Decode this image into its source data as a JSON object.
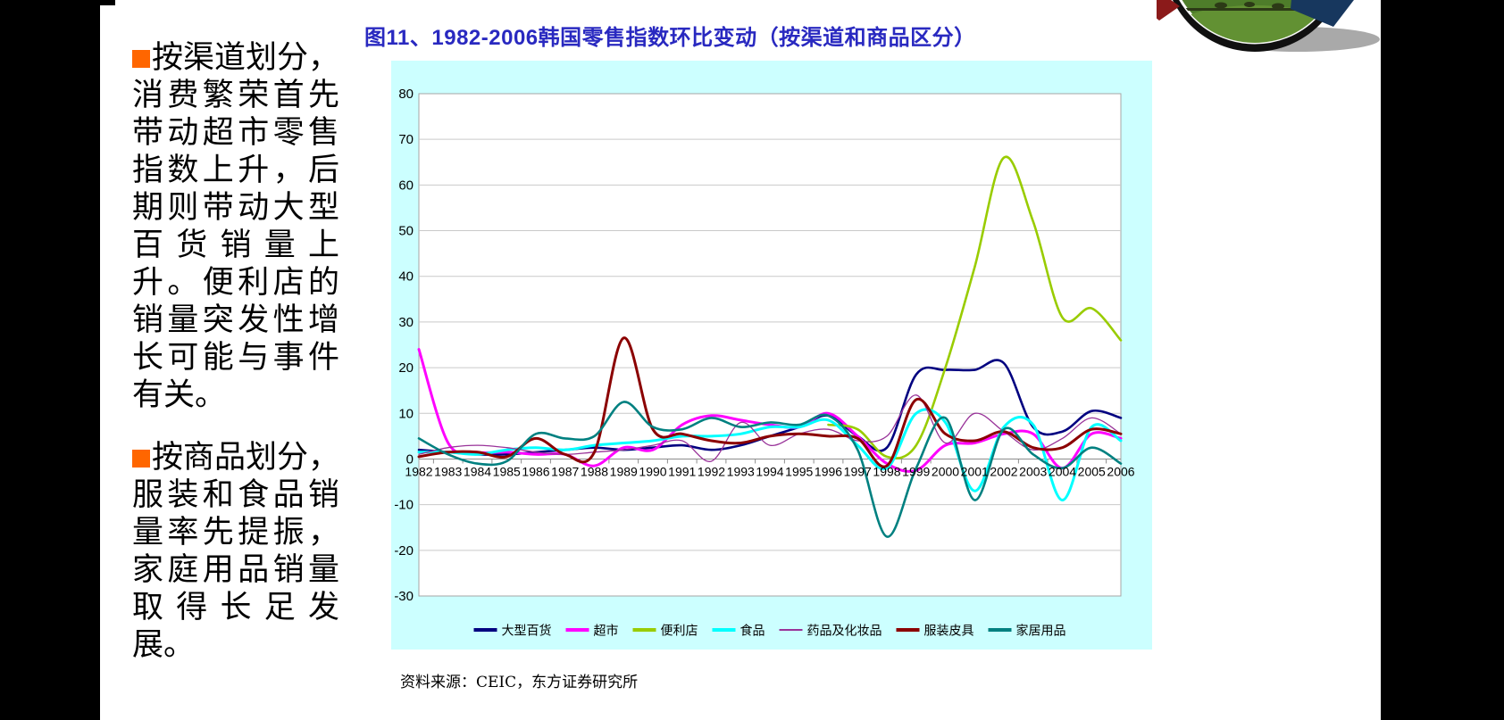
{
  "page": {
    "background": "#000000",
    "slide_background": "#ffffff"
  },
  "title": {
    "text": "图11、1982-2006韩国零售指数环比变动（按渠道和商品区分）",
    "color": "#2929c0"
  },
  "left_panel": {
    "bullet_color": "#ff6600",
    "paragraphs": [
      {
        "text": "按渠道划分，消费繁荣首先带动超市零售指数上升，后期则带动大型百货销量上升。便利店的销量突发性增长可能与事件有关。"
      },
      {
        "text": "按商品划分，服装和食品销量率先提振，家庭用品销量取得长足发展。"
      }
    ]
  },
  "source_note": "资料来源：CEIC，东方证券研究所",
  "chart_data": {
    "type": "line",
    "title": "1982-2006韩国零售指数环比变动（按渠道和商品区分）",
    "background": "#ccffff",
    "plot_background": "#ffffff",
    "grid": true,
    "gridline_color": "#c9c9c9",
    "axis_color": "#8c8c8c",
    "legend_position": "bottom",
    "ylim": [
      -30,
      80
    ],
    "ytick_interval": 10,
    "yticks": [
      80,
      70,
      60,
      50,
      40,
      30,
      20,
      10,
      0,
      -10,
      -20,
      -30
    ],
    "x": [
      1982,
      1983,
      1984,
      1985,
      1986,
      1987,
      1988,
      1989,
      1990,
      1991,
      1992,
      1993,
      1994,
      1995,
      1996,
      1997,
      1998,
      1999,
      2000,
      2001,
      2002,
      2003,
      2004,
      2005,
      2006
    ],
    "series": [
      {
        "name": "大型百货",
        "color": "#000080",
        "line_width": 2.6,
        "values": [
          2,
          1.5,
          1,
          1,
          1.5,
          2,
          2.5,
          2,
          2.5,
          3,
          2,
          3,
          5,
          7,
          9.5,
          5,
          2.5,
          18.5,
          19.5,
          19.5,
          21,
          7,
          6,
          10.5,
          9
        ]
      },
      {
        "name": "超市",
        "color": "#ff00ff",
        "line_width": 3,
        "values": [
          24,
          3.5,
          1.5,
          1.5,
          1,
          1,
          -1.5,
          2.5,
          2,
          7.5,
          9.5,
          8.5,
          7.5,
          7,
          10,
          5,
          -1,
          -2.5,
          3,
          3.5,
          5.5,
          5.5,
          -2,
          5.5,
          4.5
        ]
      },
      {
        "name": "便利店",
        "color": "#99cc00",
        "line_width": 2.6,
        "values": [
          null,
          null,
          null,
          null,
          null,
          null,
          null,
          null,
          null,
          null,
          null,
          null,
          null,
          null,
          7.5,
          6.5,
          0.5,
          3,
          20,
          42,
          66,
          52,
          31,
          33,
          26
        ]
      },
      {
        "name": "食品",
        "color": "#00ffff",
        "line_width": 3,
        "values": [
          1.5,
          1.5,
          1,
          2,
          2.5,
          2,
          3,
          3.5,
          4,
          5,
          5,
          5.5,
          7,
          7,
          8.5,
          3,
          -2,
          10,
          8,
          -7,
          7,
          7.5,
          -9,
          7,
          4
        ]
      },
      {
        "name": "药品及化妆品",
        "color": "#993399",
        "line_width": 1.3,
        "values": [
          1,
          2.5,
          3,
          2.5,
          1.5,
          1,
          1.5,
          2,
          3,
          4,
          -0.5,
          8,
          3,
          5.5,
          6.5,
          4,
          5,
          14,
          3.5,
          10,
          6,
          2,
          4.5,
          9,
          5.5
        ]
      },
      {
        "name": "服装皮具",
        "color": "#8b0000",
        "line_width": 3,
        "values": [
          0.5,
          1.5,
          1.5,
          0.5,
          4.5,
          1,
          1.5,
          26.5,
          6.5,
          5.5,
          4,
          3.5,
          5,
          5.5,
          5,
          4.5,
          -1.5,
          13,
          5.5,
          4,
          6,
          2.5,
          2.5,
          6.5,
          5.5
        ]
      },
      {
        "name": "家居用品",
        "color": "#008080",
        "line_width": 2.6,
        "values": [
          4.5,
          1,
          -1,
          -0.5,
          5.5,
          4.5,
          5,
          12.5,
          7,
          6.5,
          9,
          7,
          8,
          7.5,
          9.5,
          2,
          -17,
          -2,
          9,
          -9,
          6.5,
          1,
          -2,
          2.5,
          -1
        ]
      }
    ]
  },
  "logo": {
    "ring_color": "#101010",
    "field_color": "#4e7d2a",
    "field_light": "#629133",
    "field_dark": "#2c3a16",
    "red_accent": "#8b1a1a",
    "blue_accent": "#17375e",
    "shadow_color": "#9a9a9a"
  }
}
